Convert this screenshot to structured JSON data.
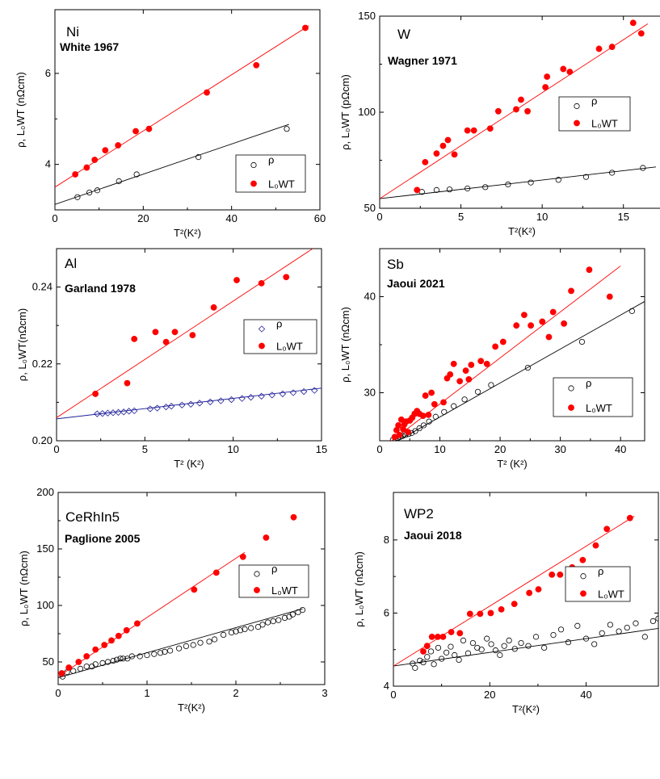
{
  "figure": {
    "colors": {
      "axis": "#000000",
      "red": "#ff0000",
      "rho_line": "#000000",
      "al_rho_line": "#1f1f99"
    }
  },
  "chart_data": [
    {
      "type": "scatter",
      "element": "Ni",
      "citation": "White 1967",
      "xlabel": "T²(K²)",
      "ylabel": "ρ, L₀WT (nΩcm)",
      "xlim": [
        0,
        60
      ],
      "ylim": [
        3.0,
        7.4
      ],
      "xticks": [
        0,
        20,
        40,
        60
      ],
      "yticks": [
        4,
        6
      ],
      "legend": {
        "position": "bottom-right",
        "entries": [
          "ρ",
          "L₀WT"
        ]
      },
      "series": [
        {
          "name": "ρ",
          "marker": "circle-open",
          "color": "#000000",
          "x": [
            5.1,
            7.8,
            9.6,
            14.5,
            18.5,
            32.5,
            52.5
          ],
          "y": [
            3.28,
            3.38,
            3.43,
            3.63,
            3.78,
            4.16,
            4.78
          ],
          "fit": [
            [
              0,
              3.12
            ],
            [
              53,
              4.88
            ]
          ]
        },
        {
          "name": "L₀WT",
          "marker": "circle-filled",
          "color": "#ff0000",
          "x": [
            4.6,
            7.2,
            9.0,
            11.4,
            14.3,
            18.3,
            21.3,
            34.4,
            45.6,
            56.7
          ],
          "y": [
            3.78,
            3.93,
            4.1,
            4.31,
            4.42,
            4.73,
            4.78,
            5.58,
            6.18,
            7.0
          ],
          "fit": [
            [
              0,
              3.5
            ],
            [
              57.5,
              7.05
            ]
          ]
        }
      ]
    },
    {
      "type": "scatter",
      "element": "W",
      "citation": "Wagner 1971",
      "xlabel": "T²(K²)",
      "ylabel": "ρ, L₀WT (pΩcm)",
      "xlim": [
        0,
        17.5
      ],
      "ylim": [
        50,
        150
      ],
      "xticks": [
        0,
        5,
        10,
        15
      ],
      "yticks": [
        50,
        100,
        150
      ],
      "legend": {
        "position": "top-right",
        "entries": [
          "ρ",
          "L₀WT"
        ]
      },
      "series": [
        {
          "name": "ρ",
          "marker": "circle-open",
          "color": "#000000",
          "x": [
            2.6,
            3.5,
            4.3,
            5.4,
            6.5,
            7.9,
            9.3,
            11.0,
            12.7,
            14.3,
            16.2
          ],
          "y": [
            58.5,
            59.5,
            59.8,
            60.3,
            61.0,
            62.4,
            63.4,
            64.8,
            66.3,
            68.5,
            71.0
          ],
          "fit": [
            [
              0,
              55.0
            ],
            [
              17.0,
              71.5
            ]
          ]
        },
        {
          "name": "L₀WT",
          "marker": "circle-filled",
          "color": "#ff0000",
          "x": [
            2.3,
            2.8,
            3.5,
            3.9,
            4.2,
            4.6,
            5.4,
            5.8,
            6.8,
            7.3,
            8.4,
            8.7,
            9.1,
            10.2,
            10.3,
            11.3,
            11.7,
            13.5,
            14.3,
            15.6,
            16.1
          ],
          "y": [
            59.5,
            74.0,
            78.5,
            82.5,
            85.5,
            78.0,
            90.5,
            90.5,
            91.5,
            100.5,
            101.5,
            106.5,
            100.5,
            113.0,
            118.5,
            122.5,
            121.0,
            133.0,
            134.0,
            146.5,
            141.0
          ],
          "fit": [
            [
              0,
              55.0
            ],
            [
              16.5,
              146.0
            ]
          ]
        }
      ]
    },
    {
      "type": "scatter",
      "element": "Al",
      "citation": "Garland 1978",
      "xlabel": "T² (K²)",
      "ylabel": "ρ, L₀WT(nΩcm)",
      "xlim": [
        0,
        15
      ],
      "ylim": [
        0.2,
        0.25
      ],
      "xticks": [
        0,
        5,
        10,
        15
      ],
      "yticks": [
        0.2,
        0.22,
        0.24
      ],
      "legend": {
        "position": "top-right",
        "entries": [
          "ρ",
          "L₀WT"
        ]
      },
      "series": [
        {
          "name": "ρ",
          "marker": "diamond-open",
          "color": "#1f1f99",
          "x": [
            2.3,
            2.6,
            2.9,
            3.2,
            3.5,
            3.8,
            4.1,
            4.4,
            5.3,
            5.7,
            6.2,
            6.5,
            7.1,
            7.6,
            8.1,
            8.7,
            9.3,
            9.9,
            10.5,
            11.0,
            11.6,
            12.2,
            12.8,
            13.4,
            14.0,
            14.6
          ],
          "y": [
            0.207,
            0.2071,
            0.2072,
            0.2073,
            0.2074,
            0.2075,
            0.2077,
            0.2078,
            0.2083,
            0.2085,
            0.2088,
            0.209,
            0.2093,
            0.2095,
            0.2098,
            0.2101,
            0.2104,
            0.2107,
            0.211,
            0.2113,
            0.2116,
            0.2119,
            0.2122,
            0.2125,
            0.2128,
            0.2131
          ],
          "fit": [
            [
              0,
              0.2057
            ],
            [
              15,
              0.2137
            ]
          ]
        },
        {
          "name": "L₀WT",
          "marker": "circle-filled",
          "color": "#ff0000",
          "x": [
            2.2,
            4.0,
            4.4,
            5.6,
            6.2,
            6.7,
            7.7,
            8.9,
            10.2,
            11.6,
            13.0
          ],
          "y": [
            0.2122,
            0.215,
            0.2265,
            0.2283,
            0.2257,
            0.2283,
            0.2275,
            0.2347,
            0.2418,
            0.241,
            0.2426
          ],
          "fit": [
            [
              0,
              0.206
            ],
            [
              14.5,
              0.25
            ]
          ]
        }
      ]
    },
    {
      "type": "scatter",
      "element": "Sb",
      "citation": "Jaoui 2021",
      "xlabel": "T² (K²)",
      "ylabel": "ρ, L₀WT (nΩcm)",
      "xlim": [
        0,
        44
      ],
      "ylim": [
        25,
        45
      ],
      "xticks": [
        0,
        10,
        20,
        30,
        40
      ],
      "yticks": [
        30,
        40
      ],
      "legend": {
        "position": "bottom-right",
        "entries": [
          "ρ",
          "L₀WT"
        ]
      },
      "series": [
        {
          "name": "ρ",
          "marker": "circle-open",
          "color": "#000000",
          "x": [
            2.2,
            2.6,
            3.0,
            3.4,
            3.8,
            4.3,
            4.8,
            5.3,
            5.9,
            6.6,
            7.3,
            8.2,
            9.3,
            10.7,
            12.3,
            14.1,
            16.3,
            18.5,
            24.6,
            33.6,
            41.9
          ],
          "y": [
            25.1,
            25.2,
            25.3,
            25.4,
            25.5,
            25.6,
            25.7,
            25.8,
            26.0,
            26.3,
            26.6,
            27.0,
            27.5,
            28.0,
            28.6,
            29.3,
            30.1,
            30.8,
            32.6,
            35.3,
            38.5
          ],
          "fit": [
            [
              3.0,
              25.0
            ],
            [
              44.0,
              39.5
            ]
          ]
        },
        {
          "name": "L₀WT",
          "marker": "circle-filled",
          "color": "#ff0000",
          "x": [
            2.5,
            2.8,
            3.1,
            3.3,
            3.6,
            3.9,
            4.1,
            4.4,
            4.7,
            5.0,
            5.4,
            5.8,
            6.2,
            6.6,
            7.2,
            7.6,
            8.1,
            8.6,
            9.1,
            10.6,
            11.2,
            11.7,
            12.3,
            13.3,
            14.3,
            14.8,
            15.2,
            16.8,
            17.8,
            19.2,
            20.5,
            22.7,
            24.0,
            25.1,
            27.0,
            28.1,
            28.8,
            30.6,
            31.8,
            34.8,
            38.2
          ],
          "y": [
            25.4,
            26.1,
            26.6,
            25.6,
            27.2,
            26.2,
            26.7,
            27.0,
            25.9,
            27.1,
            27.4,
            27.8,
            28.1,
            27.8,
            27.6,
            29.7,
            27.7,
            30.0,
            28.8,
            29.0,
            31.5,
            31.9,
            33.0,
            31.2,
            32.3,
            31.4,
            32.9,
            33.3,
            33.0,
            34.8,
            35.3,
            37.0,
            38.1,
            37.0,
            37.4,
            35.8,
            38.4,
            37.2,
            40.6,
            42.8,
            40.0
          ],
          "fit": [
            [
              2.0,
              25.0
            ],
            [
              40.0,
              43.2
            ]
          ]
        }
      ]
    },
    {
      "type": "scatter",
      "element": "CeRhIn5",
      "citation": "Paglione 2005",
      "xlabel": "T²(K²)",
      "ylabel": "ρ, L₀WT (nΩcm)",
      "xlim": [
        0,
        3
      ],
      "ylim": [
        30,
        200
      ],
      "xticks": [
        0,
        1,
        2,
        3
      ],
      "yticks": [
        50,
        100,
        150,
        200
      ],
      "legend": {
        "position": "top-right",
        "entries": [
          "ρ",
          "L₀WT"
        ]
      },
      "series": [
        {
          "name": "ρ",
          "marker": "circle-open",
          "color": "#000000",
          "x": [
            0.05,
            0.1,
            0.17,
            0.25,
            0.32,
            0.38,
            0.42,
            0.5,
            0.56,
            0.62,
            0.66,
            0.7,
            0.73,
            0.78,
            0.83,
            0.92,
            1.0,
            1.08,
            1.15,
            1.2,
            1.26,
            1.36,
            1.44,
            1.52,
            1.6,
            1.7,
            1.76,
            1.86,
            1.95,
            2.0,
            2.05,
            2.1,
            2.17,
            2.25,
            2.3,
            2.36,
            2.42,
            2.48,
            2.55,
            2.6,
            2.64,
            2.7,
            2.75
          ],
          "y": [
            37,
            41,
            42,
            44,
            46,
            46,
            48,
            49,
            50,
            51,
            52,
            53,
            53,
            53,
            55,
            55,
            56,
            57,
            58,
            59,
            60,
            62,
            64,
            65,
            67,
            68,
            70,
            74,
            76,
            77,
            78,
            79,
            80,
            81,
            83,
            85,
            86,
            87,
            89,
            90,
            92,
            94,
            96
          ],
          "fit": [
            [
              0,
              36.0
            ],
            [
              2.75,
              97.0
            ]
          ]
        },
        {
          "name": "L₀WT",
          "marker": "circle-filled",
          "color": "#ff0000",
          "x": [
            0.04,
            0.12,
            0.23,
            0.32,
            0.42,
            0.52,
            0.6,
            0.68,
            0.77,
            0.89,
            1.53,
            1.78,
            2.08,
            2.34,
            2.65
          ],
          "y": [
            40,
            45,
            50,
            55,
            61,
            65,
            69,
            73,
            78,
            84,
            114,
            129,
            143,
            160,
            178
          ],
          "fit": [
            [
              0,
              37.0
            ],
            [
              2.1,
              147.0
            ]
          ]
        }
      ]
    },
    {
      "type": "scatter",
      "element": "WP2",
      "citation": "Jaoui 2018",
      "xlabel": "T²(K²)",
      "ylabel": "ρ, L₀WT (nΩcm)",
      "xlim": [
        0,
        55
      ],
      "ylim": [
        4,
        9.3
      ],
      "xticks": [
        0,
        20,
        40
      ],
      "yticks": [
        4,
        6,
        8
      ],
      "legend": {
        "position": "top-right",
        "entries": [
          "ρ",
          "L₀WT"
        ]
      },
      "series": [
        {
          "name": "ρ",
          "marker": "circle-open",
          "color": "#000000",
          "x": [
            4.0,
            4.5,
            5.5,
            6.2,
            7.0,
            7.8,
            8.4,
            9.3,
            10.0,
            11.0,
            11.9,
            12.7,
            13.6,
            14.5,
            15.5,
            16.5,
            17.4,
            18.3,
            19.4,
            20.3,
            21.2,
            22.1,
            23.0,
            24.0,
            25.2,
            26.5,
            28.0,
            29.6,
            31.3,
            33.2,
            34.8,
            36.3,
            38.2,
            40.0,
            41.7,
            43.3,
            45.0,
            46.8,
            48.5,
            50.3,
            52.2,
            53.9,
            55.0
          ],
          "y": [
            4.62,
            4.5,
            4.7,
            4.65,
            4.8,
            4.95,
            4.6,
            5.05,
            4.75,
            4.92,
            5.08,
            4.85,
            4.72,
            5.25,
            4.9,
            5.18,
            5.05,
            5.0,
            5.3,
            5.15,
            4.98,
            4.85,
            5.1,
            5.25,
            5.02,
            5.18,
            5.1,
            5.35,
            5.05,
            5.4,
            5.55,
            5.2,
            5.65,
            5.3,
            5.15,
            5.45,
            5.68,
            5.5,
            5.6,
            5.72,
            5.35,
            5.78,
            5.85
          ],
          "fit": [
            [
              0,
              4.55
            ],
            [
              55,
              5.58
            ]
          ]
        },
        {
          "name": "L₀WT",
          "marker": "circle-filled",
          "color": "#ff0000",
          "x": [
            6.2,
            7.0,
            8.0,
            9.2,
            10.3,
            12.0,
            13.8,
            15.9,
            18.0,
            20.2,
            22.4,
            25.1,
            28.2,
            30.1,
            32.9,
            34.6,
            37.1,
            39.3,
            42.0,
            44.3,
            49.1
          ],
          "y": [
            4.95,
            5.1,
            5.35,
            5.35,
            5.35,
            5.48,
            5.45,
            5.98,
            5.98,
            6.0,
            6.1,
            6.25,
            6.55,
            6.65,
            7.05,
            7.05,
            7.25,
            7.45,
            7.85,
            8.3,
            8.6
          ],
          "fit": [
            [
              0,
              4.55
            ],
            [
              50,
              8.65
            ]
          ]
        }
      ]
    }
  ]
}
